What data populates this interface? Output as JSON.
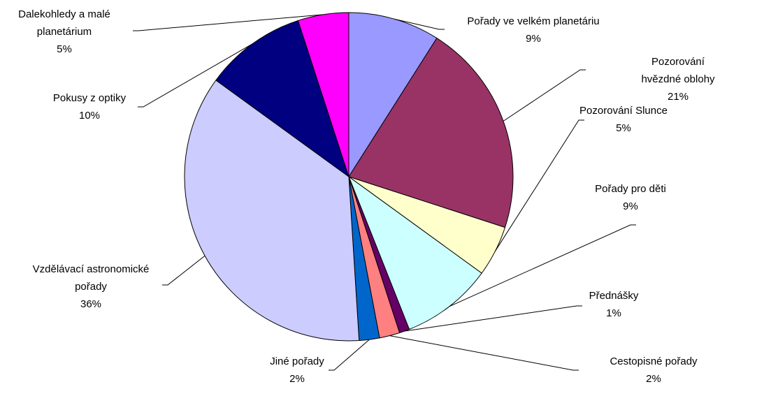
{
  "chart_data": {
    "type": "pie",
    "categories": [
      "Pořady ve velkém planetáriu",
      "Pozorování hvězdné oblohy",
      "Pozorování Slunce",
      "Pořady pro děti",
      "Přednášky",
      "Cestopisné pořady",
      "Jiné pořady",
      "Vzdělávací astronomické\npořady",
      "Pokusy z optiky",
      "Dalekohledy a malé\nplanetárium"
    ],
    "values": [
      9,
      21,
      5,
      9,
      1,
      2,
      2,
      36,
      10,
      5
    ],
    "value_labels": [
      "9%",
      "21%",
      "5%",
      "9%",
      "1%",
      "2%",
      "2%",
      "36%",
      "10%",
      "5%"
    ],
    "colors": [
      "#9999ff",
      "#993366",
      "#ffffcc",
      "#ccffff",
      "#660066",
      "#ff8080",
      "#0066cc",
      "#ccccff",
      "#000080",
      "#ff00ff"
    ]
  }
}
